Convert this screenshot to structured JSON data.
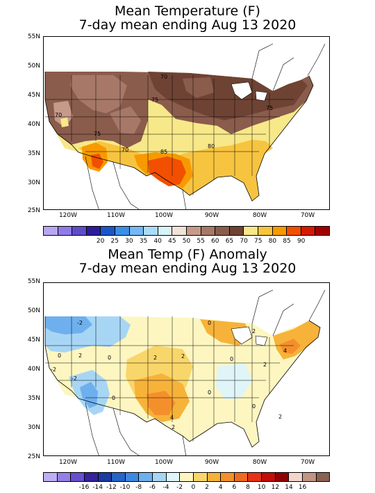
{
  "top": {
    "title_line1": "Mean Temperature (F)",
    "title_line2": "7-day mean ending Aug 13 2020",
    "lat_labels": [
      "55N",
      "50N",
      "45N",
      "40N",
      "35N",
      "30N",
      "25N"
    ],
    "lon_labels": [
      "120W",
      "110W",
      "100W",
      "90W",
      "80W",
      "70W"
    ],
    "contour_labels": [
      "70",
      "75",
      "70",
      "75",
      "70",
      "85",
      "80",
      "75"
    ],
    "colorbar": {
      "colors": [
        "#b8a6f0",
        "#8f7be6",
        "#5e4cc8",
        "#2c1c9c",
        "#1b56c8",
        "#3a8ee6",
        "#75b8f2",
        "#a9dcf7",
        "#d8f4f7",
        "#f1e2d8",
        "#c59a8a",
        "#a77868",
        "#8a5c4c",
        "#6e4334",
        "#f7e889",
        "#f7c440",
        "#f79a00",
        "#f24f00",
        "#d41a00",
        "#a10000"
      ],
      "ticks": [
        "20",
        "25",
        "30",
        "35",
        "40",
        "45",
        "50",
        "55",
        "60",
        "65",
        "70",
        "75",
        "80",
        "85",
        "90"
      ]
    }
  },
  "bottom": {
    "title_line1": "Mean Temp (F) Anomaly",
    "title_line2": "7-day mean ending Aug 13 2020",
    "lat_labels": [
      "55N",
      "50N",
      "45N",
      "40N",
      "35N",
      "30N",
      "25N"
    ],
    "lon_labels": [
      "120W",
      "110W",
      "100W",
      "90W",
      "80W",
      "70W"
    ],
    "contour_labels": [
      "-2",
      "0",
      "2",
      "0",
      "-2",
      "2",
      "2",
      "0",
      "2",
      "0",
      "-2",
      "0",
      "0",
      "4",
      "2",
      "2",
      "4",
      "0",
      "2"
    ],
    "colorbar": {
      "colors": [
        "#c0aef2",
        "#9580e8",
        "#6650d0",
        "#35229e",
        "#1c3aa0",
        "#2664c8",
        "#3e88e2",
        "#6eb0ee",
        "#a7d6f5",
        "#dff5f7",
        "#fdf6c0",
        "#f9d66a",
        "#f7b23a",
        "#f4902c",
        "#ef6a20",
        "#e63318",
        "#c20e0a",
        "#8e0404",
        "#f2d6cc",
        "#c19484",
        "#8a6254"
      ],
      "ticks": [
        "-16",
        "-14",
        "-12",
        "-10",
        "-8",
        "-6",
        "-4",
        "-2",
        "0",
        "2",
        "4",
        "6",
        "8",
        "10",
        "12",
        "14",
        "16"
      ]
    }
  }
}
